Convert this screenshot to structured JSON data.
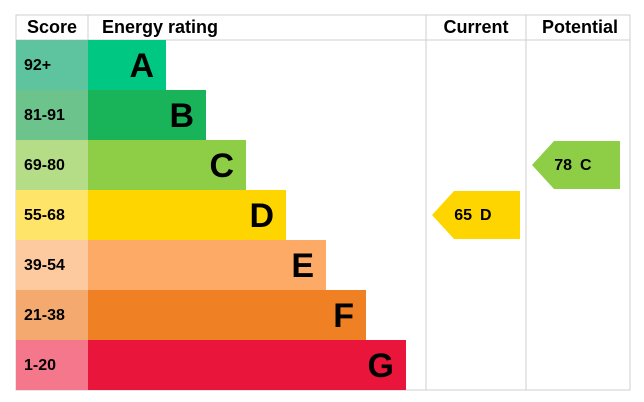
{
  "chart_data": {
    "type": "epc",
    "headers": {
      "score": "Score",
      "rating": "Energy rating",
      "current": "Current",
      "potential": "Potential"
    },
    "bands": [
      {
        "score": "92+",
        "letter": "A",
        "color": "#00c781",
        "score_color": "#5ec4a0"
      },
      {
        "score": "81-91",
        "letter": "B",
        "color": "#19b459",
        "score_color": "#6cc38c"
      },
      {
        "score": "69-80",
        "letter": "C",
        "color": "#8dce46",
        "score_color": "#b5dd88"
      },
      {
        "score": "55-68",
        "letter": "D",
        "color": "#ffd500",
        "score_color": "#ffe46a"
      },
      {
        "score": "39-54",
        "letter": "E",
        "color": "#fcaa65",
        "score_color": "#fdcaa0"
      },
      {
        "score": "21-38",
        "letter": "F",
        "color": "#ef8023",
        "score_color": "#f4aa6e"
      },
      {
        "score": "1-20",
        "letter": "G",
        "color": "#e9153b",
        "score_color": "#f4778c"
      }
    ],
    "current": {
      "value": 65,
      "letter": "D"
    },
    "potential": {
      "value": 78,
      "letter": "C"
    }
  }
}
